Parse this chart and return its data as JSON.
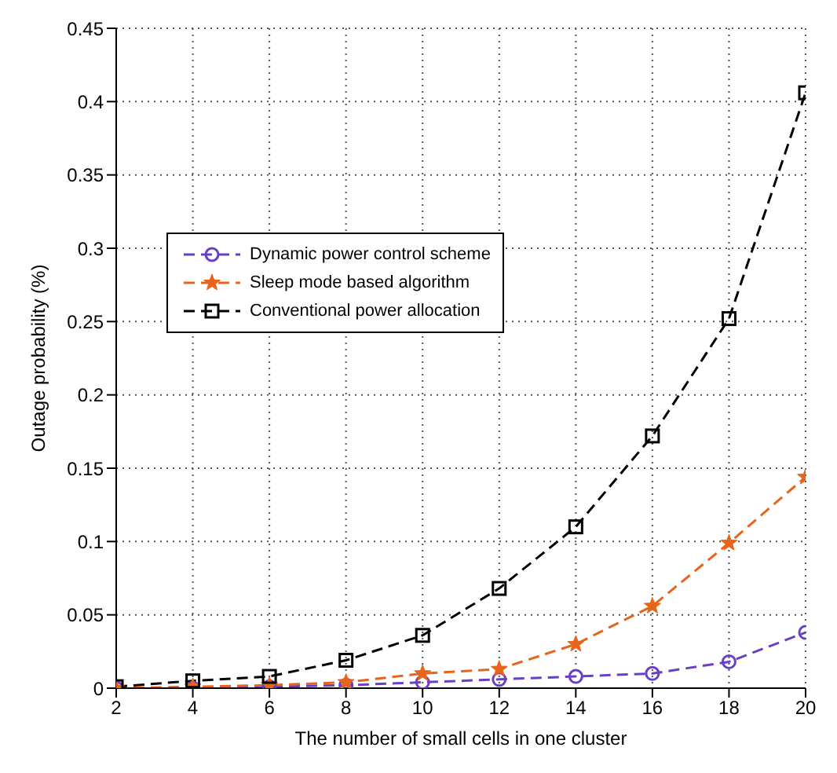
{
  "chart_data": {
    "type": "line",
    "xlabel": "The number of small cells in one cluster",
    "ylabel": "Outage probability (%)",
    "x": [
      2,
      4,
      6,
      8,
      10,
      12,
      14,
      16,
      18,
      20
    ],
    "series": [
      {
        "name": "Dynamic power control scheme",
        "color": "#6a3fc8",
        "marker": "circle",
        "values": [
          0,
          0,
          0.001,
          0.002,
          0.004,
          0.006,
          0.008,
          0.01,
          0.018,
          0.038
        ]
      },
      {
        "name": "Sleep mode based algorithm",
        "color": "#e8641a",
        "marker": "star",
        "values": [
          0,
          0.001,
          0.002,
          0.004,
          0.01,
          0.013,
          0.03,
          0.056,
          0.099,
          0.144
        ]
      },
      {
        "name": "Conventional power allocation",
        "color": "#000000",
        "marker": "square",
        "values": [
          0.001,
          0.005,
          0.008,
          0.019,
          0.036,
          0.068,
          0.11,
          0.172,
          0.252,
          0.406
        ]
      }
    ],
    "xlim": [
      2,
      20
    ],
    "xticks": [
      2,
      4,
      6,
      8,
      10,
      12,
      14,
      16,
      18,
      20
    ],
    "ylim": [
      0,
      0.45
    ],
    "yticks": [
      0,
      0.05,
      0.1,
      0.15,
      0.2,
      0.25,
      0.3,
      0.35,
      0.4,
      0.45
    ],
    "grid": true,
    "legend": "left",
    "line_style": "dashed"
  }
}
